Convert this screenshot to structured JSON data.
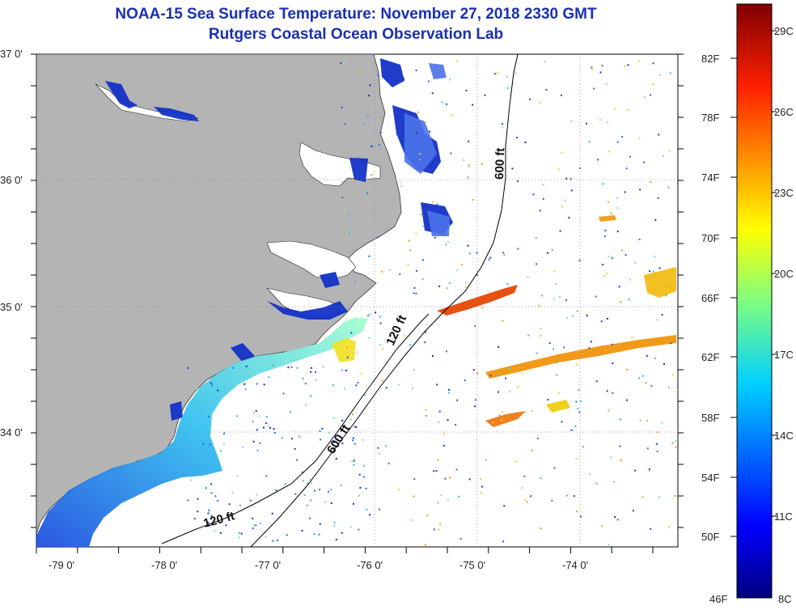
{
  "title": "NOAA-15 Sea Surface Temperature:  November 27, 2018 2330 GMT",
  "subtitle": "Rutgers Coastal Ocean Observation Lab",
  "lat_labels": [
    "37 0'",
    "36 0'",
    "35 0'",
    "34 0'"
  ],
  "lon_labels": [
    "-79 0'",
    "-78 0'",
    "-77 0'",
    "-76 0'",
    "-75 0'",
    "-74 0'"
  ],
  "contours": {
    "c120_a": "120 ft",
    "c120_b": "120 ft",
    "c600_a": "600 ft",
    "c600_b": "600 ft"
  },
  "colorbar": {
    "fahrenheit": [
      "82F",
      "78F",
      "74F",
      "70F",
      "66F",
      "62F",
      "58F",
      "54F",
      "50F",
      "46F"
    ],
    "celsius": [
      "29C",
      "26C",
      "23C",
      "20C",
      "17C",
      "14C",
      "11C",
      "8C"
    ]
  },
  "colors": {
    "land": "#b4b4b4",
    "ocean": "#ffffff",
    "title": "#1a2fb5",
    "grid": "#888888"
  }
}
